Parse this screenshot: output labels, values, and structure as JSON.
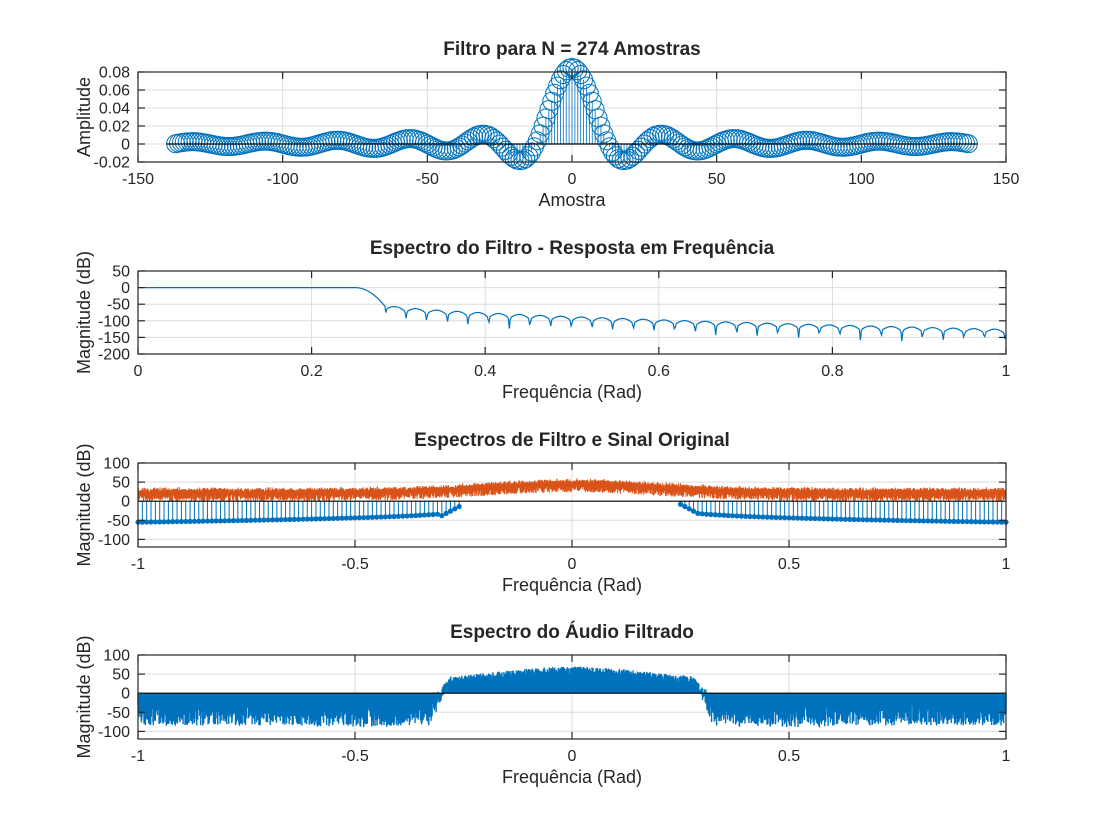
{
  "chart_data": [
    {
      "type": "stem",
      "title": "Filtro para N = 274 Amostras",
      "xlabel": "Amostra",
      "ylabel": "Amplitude",
      "xlim": [
        -150,
        150
      ],
      "ylim": [
        -0.02,
        0.08
      ],
      "xticks": [
        "-150",
        "-100",
        "-50",
        "0",
        "50",
        "100",
        "150"
      ],
      "yticks": [
        "-0.02",
        "0",
        "0.02",
        "0.04",
        "0.06",
        "0.08"
      ],
      "grid": true,
      "marker": "circle",
      "n_samples": 274,
      "x_range": [
        -137,
        137
      ],
      "kernel": {
        "peak": 0.085,
        "first_zero": 12.5
      },
      "color": "#0072bd"
    },
    {
      "type": "line",
      "title": "Espectro do Filtro - Resposta em Frequência",
      "xlabel": "Frequência (Rad)",
      "ylabel": "Magnitude (dB)",
      "xlim": [
        0,
        1
      ],
      "ylim": [
        -200,
        50
      ],
      "xticks": [
        "0",
        "0.2",
        "0.4",
        "0.6",
        "0.8",
        "1"
      ],
      "yticks": [
        "-200",
        "-150",
        "-100",
        "-50",
        "0",
        "50"
      ],
      "grid": true,
      "cutoff": 0.25,
      "passband_db": 0,
      "stopband_start_db": -55,
      "stopband_end_db": -130,
      "color": "#0072bd"
    },
    {
      "type": "stem",
      "title": "Espectros de Filtro e Sinal Original",
      "xlabel": "Frequência (Rad)",
      "ylabel": "Magnitude (dB)",
      "xlim": [
        -1,
        1
      ],
      "ylim": [
        -120,
        100
      ],
      "xticks": [
        "-1",
        "-0.5",
        "0",
        "0.5",
        "1"
      ],
      "yticks": [
        "-100",
        "-50",
        "0",
        "50",
        "100"
      ],
      "grid": true,
      "series": [
        {
          "role": "filter",
          "color": "#0072bd",
          "passband": 0.25,
          "edge_db": -55
        },
        {
          "role": "signal",
          "color": "#d95319",
          "base_db": 22,
          "center_db": 45,
          "spread_db": 18
        }
      ]
    },
    {
      "type": "stem",
      "title": "Espectro do Áudio Filtrado",
      "xlabel": "Frequência (Rad)",
      "ylabel": "Magnitude (dB)",
      "xlim": [
        -1,
        1
      ],
      "ylim": [
        -120,
        100
      ],
      "xticks": [
        "-1",
        "-0.5",
        "0",
        "0.5",
        "1"
      ],
      "yticks": [
        "-100",
        "-50",
        "0",
        "50",
        "100"
      ],
      "grid": true,
      "passband": 0.28,
      "pass_db": [
        35,
        70
      ],
      "stop_db": [
        -85,
        -25
      ],
      "color": "#0072bd"
    }
  ]
}
